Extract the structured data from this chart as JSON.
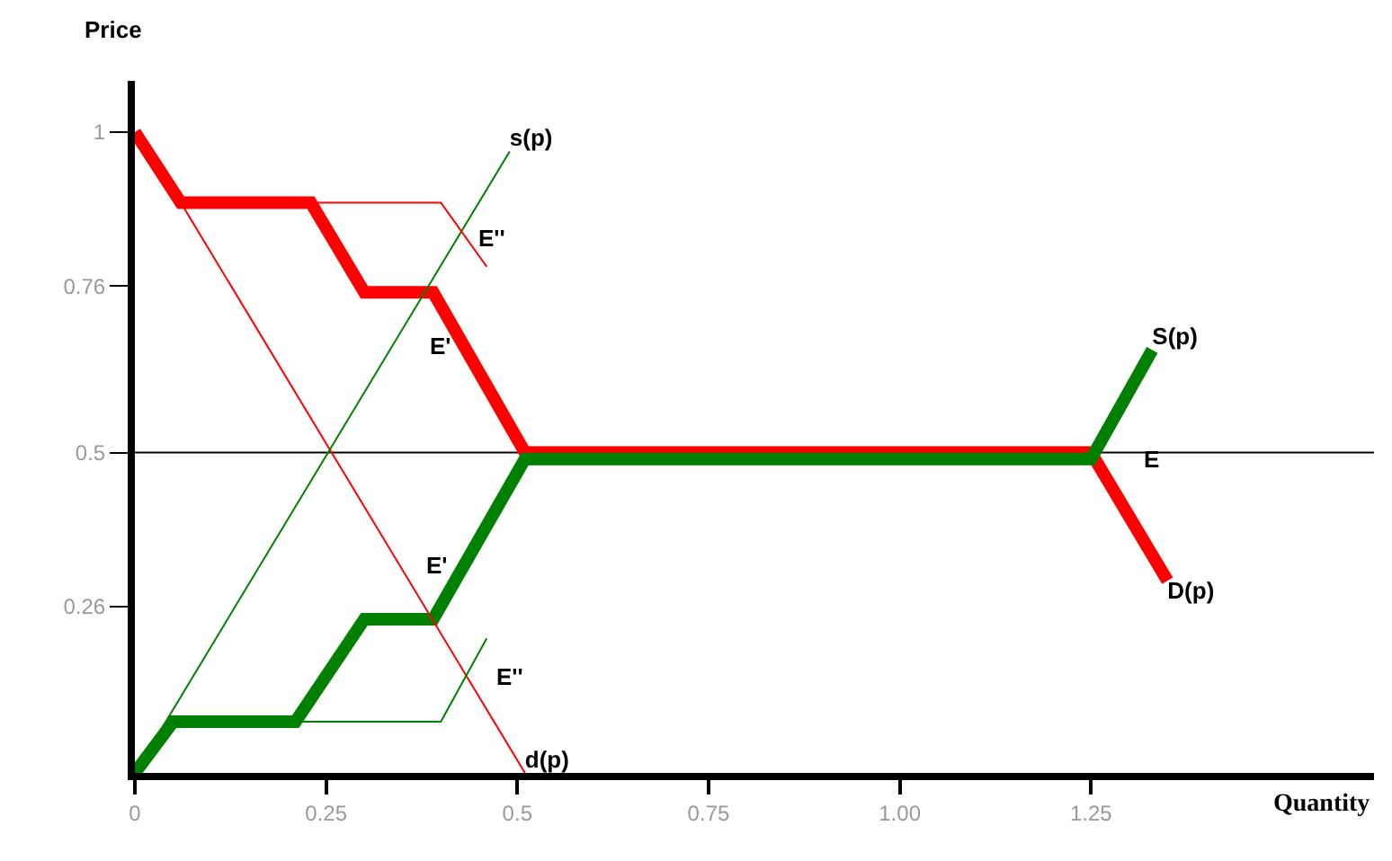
{
  "chart_data": {
    "type": "line",
    "xlabel": "Quantity",
    "ylabel": "Price",
    "xlim": [
      0,
      1.62
    ],
    "ylim": [
      0,
      1.08
    ],
    "xticks": [
      {
        "value": 0,
        "label": "0"
      },
      0.25,
      0.5,
      0.75,
      {
        "value": 1,
        "label": "1.00"
      },
      1.25
    ],
    "yticks": [
      {
        "value": 0.26,
        "label": "0.26"
      },
      0.5,
      {
        "value": 0.76,
        "label": "0.76"
      },
      1
    ],
    "grid": false,
    "marker": "none",
    "line_style": "solid",
    "ref_lines": [
      {
        "axis": "y",
        "value": 0.5,
        "color": "#000000"
      }
    ],
    "series": [
      {
        "name": "D(p)",
        "color": "#ff0000",
        "x": [
          0,
          0.06,
          0.23,
          0.3,
          0.39,
          0.51,
          1.25,
          1.35
        ],
        "values": [
          1,
          0.89,
          0.89,
          0.75,
          0.75,
          0.5,
          0.5,
          0.3
        ]
      },
      {
        "name": "S(p)",
        "color": "#008000",
        "x": [
          0,
          0.05,
          0.21,
          0.3,
          0.39,
          0.51,
          1.25,
          1.33
        ],
        "values": [
          0,
          0.08,
          0.08,
          0.24,
          0.24,
          0.49,
          0.49,
          0.66
        ]
      },
      {
        "name": "d(p)",
        "color": "#ff0000",
        "x": [
          0.06,
          0.51
        ],
        "values": [
          0.89,
          0
        ]
      },
      {
        "name": "s(p)",
        "color": "#008000",
        "x": [
          0,
          0.49
        ],
        "values": [
          0,
          0.97
        ]
      },
      {
        "color": "#ff0000",
        "x": [
          0.23,
          0.4,
          0.46
        ],
        "values": [
          0.89,
          0.89,
          0.79
        ]
      },
      {
        "color": "#008000",
        "x": [
          0.21,
          0.4,
          0.46
        ],
        "values": [
          0.08,
          0.08,
          0.21
        ]
      }
    ],
    "annotations": [
      {
        "text": "E''",
        "x": 0.43,
        "y": 0.85
      },
      {
        "text": "E'",
        "x": 0.39,
        "y": 0.75
      },
      {
        "text": "E'",
        "x": 0.39,
        "y": 0.24
      },
      {
        "text": "E''",
        "x": 0.43,
        "y": 0.15
      },
      {
        "text": "E",
        "x": 1.25,
        "y": 0.49
      }
    ]
  }
}
